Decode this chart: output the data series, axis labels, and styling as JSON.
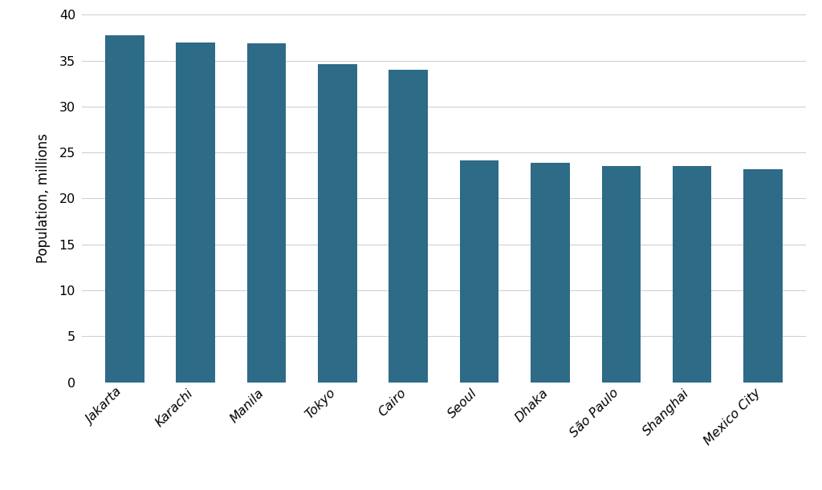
{
  "categories": [
    "Jakarta",
    "Karachi",
    "Manila",
    "Tokyo",
    "Cairo",
    "Seoul",
    "Dhaka",
    "São Paulo",
    "Shanghai",
    "Mexico City"
  ],
  "values": [
    37.8,
    37.0,
    36.9,
    34.6,
    34.0,
    24.1,
    23.9,
    23.5,
    23.5,
    23.2
  ],
  "bar_color": "#2d6b87",
  "ylabel": "Population, millions",
  "ylim": [
    0,
    40
  ],
  "yticks": [
    0,
    5,
    10,
    15,
    20,
    25,
    30,
    35,
    40
  ],
  "background_color": "#ffffff",
  "grid_color": "#d0d0d0",
  "tick_label_fontsize": 11.5,
  "axis_label_fontsize": 12,
  "bar_width": 0.55
}
